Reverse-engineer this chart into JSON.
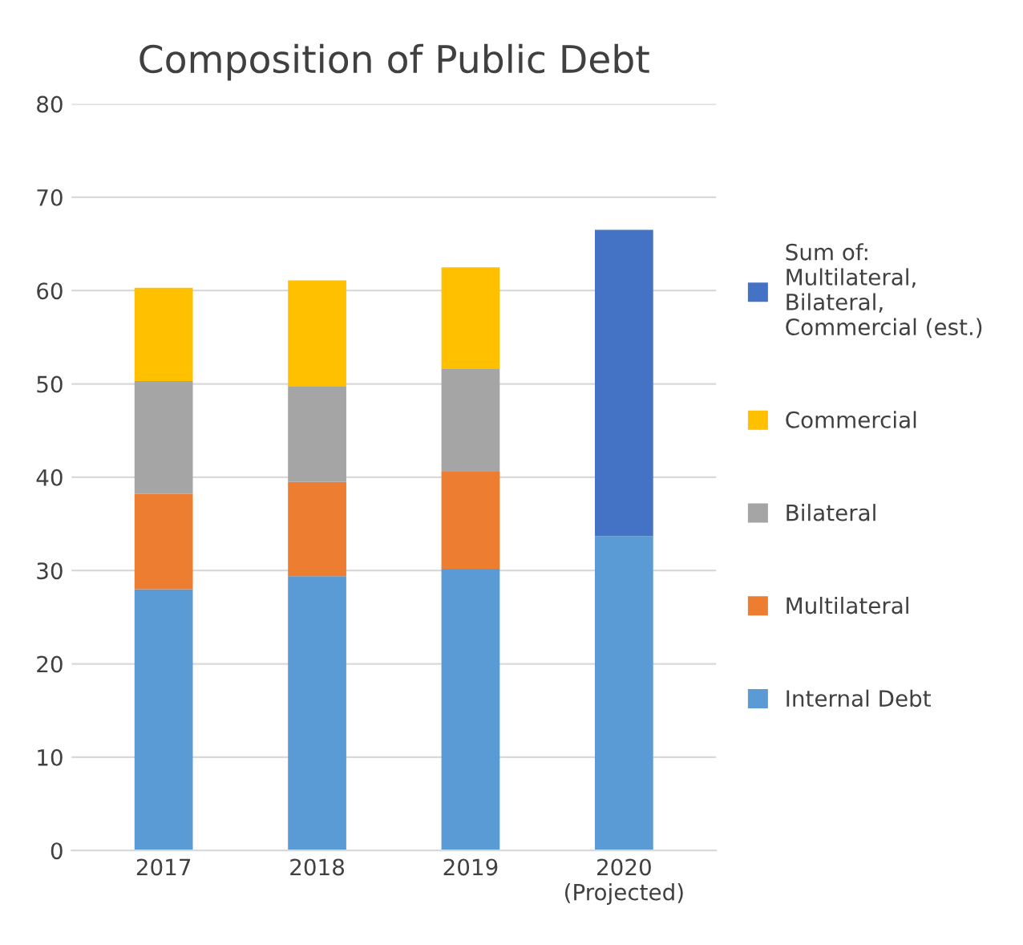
{
  "chart_data": {
    "type": "bar",
    "title": "Composition of Public Debt",
    "stacked": true,
    "categories": [
      "2017",
      "2018",
      "2019",
      "2020\n(Projected)"
    ],
    "series": [
      {
        "name": "Internal Debt",
        "color": "#5b9bd5",
        "values": [
          28.0,
          29.4,
          30.2,
          33.7
        ]
      },
      {
        "name": "Multilateral",
        "color": "#ed7d31",
        "values": [
          10.2,
          10.1,
          10.4,
          null
        ]
      },
      {
        "name": "Bilateral",
        "color": "#a5a5a5",
        "values": [
          12.1,
          10.2,
          11.0,
          null
        ]
      },
      {
        "name": "Commercial",
        "color": "#ffc000",
        "values": [
          10.0,
          11.4,
          10.9,
          null
        ]
      },
      {
        "name": "Sum of:\nMultilateral,\nBilateral,\nCommercial (est.)",
        "color": "#4472c4",
        "values": [
          null,
          null,
          null,
          32.8
        ]
      }
    ],
    "ylim": [
      0,
      80
    ],
    "yticks": [
      0,
      10,
      20,
      30,
      40,
      50,
      60,
      70,
      80
    ],
    "grid": "y",
    "legend": "right"
  }
}
